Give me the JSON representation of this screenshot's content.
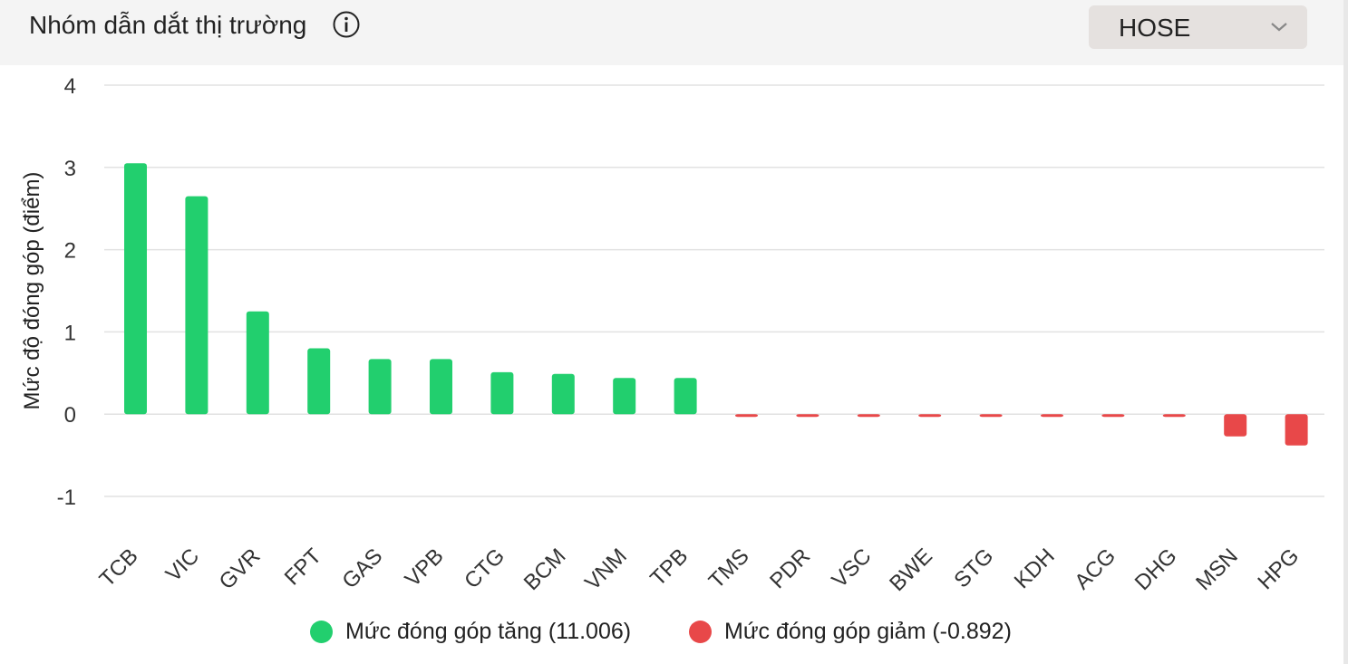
{
  "header": {
    "title": "Nhóm dẫn dắt thị trường",
    "info_icon": "info-circle-icon",
    "exchange_select": {
      "value": "HOSE",
      "icon": "chevron-down-icon"
    }
  },
  "chart_data": {
    "type": "bar",
    "ylabel": "Mức độ đóng góp (điểm)",
    "ylim": [
      -1,
      4
    ],
    "yticks": [
      4,
      3,
      2,
      1,
      0,
      -1
    ],
    "grid": true,
    "legend_placement": "bottom",
    "categories": [
      "TCB",
      "VIC",
      "GVR",
      "FPT",
      "GAS",
      "VPB",
      "CTG",
      "BCM",
      "VNM",
      "TPB",
      "TMS",
      "PDR",
      "VSC",
      "BWE",
      "STG",
      "KDH",
      "ACG",
      "DHG",
      "MSN",
      "HPG"
    ],
    "values": [
      3.05,
      2.65,
      1.25,
      0.8,
      0.67,
      0.67,
      0.51,
      0.49,
      0.44,
      0.44,
      -0.03,
      -0.03,
      -0.03,
      -0.03,
      -0.03,
      -0.03,
      -0.03,
      -0.03,
      -0.27,
      -0.38
    ],
    "series": [
      {
        "name": "Mức đóng góp tăng (11.006)",
        "color": "#22cf6e"
      },
      {
        "name": "Mức đóng góp giảm (-0.892)",
        "color": "#e84849"
      }
    ]
  }
}
